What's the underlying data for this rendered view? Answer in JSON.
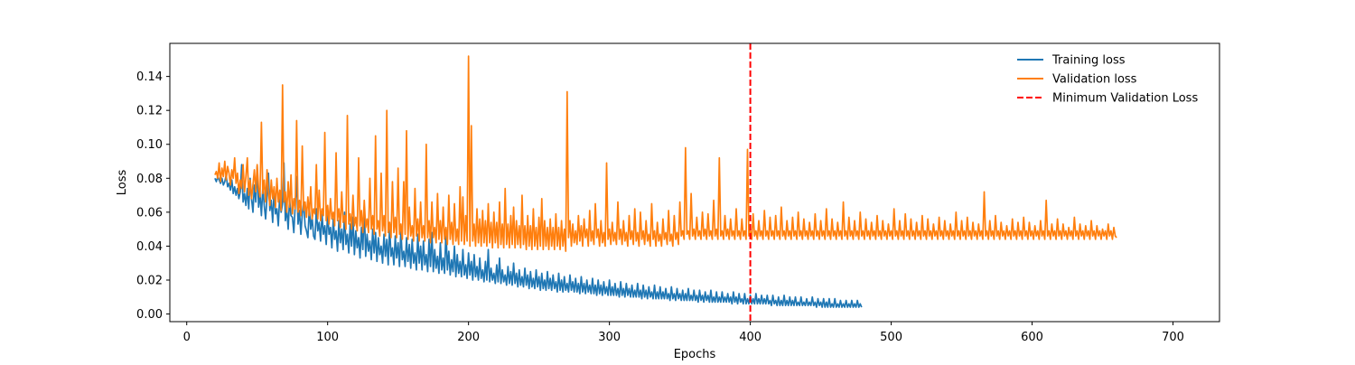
{
  "chart_data": {
    "type": "line",
    "title": "",
    "xlabel": "Epochs",
    "ylabel": "Loss",
    "xlim": [
      -12,
      733
    ],
    "ylim": [
      -0.0045,
      0.1595
    ],
    "xticks": [
      0,
      100,
      200,
      300,
      400,
      500,
      600,
      700
    ],
    "yticks": [
      0.0,
      0.02,
      0.04,
      0.06,
      0.08,
      0.1,
      0.12,
      0.14
    ],
    "ytick_labels": [
      "0.00",
      "0.02",
      "0.04",
      "0.06",
      "0.08",
      "0.10",
      "0.12",
      "0.14"
    ],
    "grid": false,
    "legend_position": "top-right",
    "series": [
      {
        "name": "Training loss",
        "color": "#1f77b4",
        "x_start": 20,
        "x_step": 1,
        "values": [
          0.08,
          0.078,
          0.081,
          0.079,
          0.077,
          0.08,
          0.076,
          0.078,
          0.082,
          0.075,
          0.077,
          0.073,
          0.079,
          0.071,
          0.075,
          0.07,
          0.074,
          0.068,
          0.072,
          0.088,
          0.066,
          0.071,
          0.064,
          0.074,
          0.062,
          0.08,
          0.068,
          0.06,
          0.076,
          0.066,
          0.087,
          0.063,
          0.071,
          0.058,
          0.075,
          0.064,
          0.056,
          0.069,
          0.083,
          0.061,
          0.067,
          0.054,
          0.073,
          0.059,
          0.062,
          0.052,
          0.07,
          0.06,
          0.065,
          0.089,
          0.055,
          0.062,
          0.05,
          0.068,
          0.058,
          0.057,
          0.048,
          0.064,
          0.081,
          0.053,
          0.061,
          0.047,
          0.059,
          0.066,
          0.052,
          0.049,
          0.045,
          0.063,
          0.05,
          0.057,
          0.046,
          0.044,
          0.062,
          0.049,
          0.054,
          0.043,
          0.059,
          0.047,
          0.052,
          0.041,
          0.06,
          0.047,
          0.051,
          0.039,
          0.056,
          0.044,
          0.049,
          0.037,
          0.055,
          0.042,
          0.05,
          0.038,
          0.06,
          0.041,
          0.047,
          0.036,
          0.053,
          0.04,
          0.057,
          0.035,
          0.049,
          0.039,
          0.045,
          0.033,
          0.051,
          0.038,
          0.063,
          0.034,
          0.047,
          0.037,
          0.043,
          0.032,
          0.05,
          0.036,
          0.048,
          0.031,
          0.045,
          0.035,
          0.04,
          0.03,
          0.047,
          0.034,
          0.044,
          0.029,
          0.052,
          0.034,
          0.039,
          0.029,
          0.046,
          0.033,
          0.042,
          0.028,
          0.05,
          0.032,
          0.037,
          0.028,
          0.045,
          0.031,
          0.041,
          0.027,
          0.044,
          0.03,
          0.036,
          0.026,
          0.047,
          0.03,
          0.04,
          0.026,
          0.043,
          0.029,
          0.035,
          0.025,
          0.044,
          0.028,
          0.048,
          0.025,
          0.038,
          0.027,
          0.034,
          0.024,
          0.042,
          0.026,
          0.033,
          0.024,
          0.05,
          0.026,
          0.037,
          0.023,
          0.032,
          0.025,
          0.04,
          0.022,
          0.035,
          0.024,
          0.031,
          0.022,
          0.038,
          0.023,
          0.029,
          0.021,
          0.036,
          0.023,
          0.031,
          0.02,
          0.035,
          0.022,
          0.028,
          0.02,
          0.033,
          0.021,
          0.026,
          0.019,
          0.031,
          0.02,
          0.038,
          0.019,
          0.027,
          0.02,
          0.024,
          0.018,
          0.029,
          0.019,
          0.033,
          0.018,
          0.026,
          0.019,
          0.023,
          0.017,
          0.028,
          0.018,
          0.025,
          0.017,
          0.03,
          0.018,
          0.024,
          0.016,
          0.026,
          0.017,
          0.022,
          0.016,
          0.027,
          0.017,
          0.023,
          0.015,
          0.025,
          0.016,
          0.021,
          0.015,
          0.026,
          0.016,
          0.022,
          0.014,
          0.024,
          0.015,
          0.02,
          0.014,
          0.025,
          0.015,
          0.021,
          0.014,
          0.023,
          0.015,
          0.019,
          0.013,
          0.024,
          0.014,
          0.02,
          0.013,
          0.022,
          0.014,
          0.018,
          0.013,
          0.023,
          0.014,
          0.019,
          0.013,
          0.021,
          0.013,
          0.018,
          0.012,
          0.022,
          0.013,
          0.018,
          0.012,
          0.02,
          0.013,
          0.017,
          0.012,
          0.021,
          0.012,
          0.017,
          0.011,
          0.02,
          0.012,
          0.017,
          0.011,
          0.019,
          0.012,
          0.016,
          0.011,
          0.02,
          0.011,
          0.016,
          0.011,
          0.018,
          0.011,
          0.015,
          0.01,
          0.019,
          0.011,
          0.015,
          0.01,
          0.018,
          0.011,
          0.015,
          0.01,
          0.017,
          0.01,
          0.014,
          0.01,
          0.018,
          0.01,
          0.014,
          0.009,
          0.017,
          0.01,
          0.014,
          0.009,
          0.016,
          0.01,
          0.013,
          0.009,
          0.017,
          0.009,
          0.013,
          0.009,
          0.016,
          0.009,
          0.013,
          0.009,
          0.015,
          0.009,
          0.012,
          0.008,
          0.016,
          0.009,
          0.012,
          0.008,
          0.015,
          0.009,
          0.012,
          0.008,
          0.014,
          0.008,
          0.012,
          0.008,
          0.015,
          0.008,
          0.011,
          0.008,
          0.014,
          0.008,
          0.011,
          0.007,
          0.014,
          0.008,
          0.011,
          0.007,
          0.013,
          0.008,
          0.011,
          0.007,
          0.014,
          0.007,
          0.01,
          0.007,
          0.013,
          0.007,
          0.01,
          0.007,
          0.013,
          0.007,
          0.01,
          0.007,
          0.012,
          0.007,
          0.01,
          0.006,
          0.013,
          0.007,
          0.01,
          0.006,
          0.012,
          0.007,
          0.009,
          0.006,
          0.012,
          0.006,
          0.009,
          0.006,
          0.011,
          0.006,
          0.009,
          0.006,
          0.012,
          0.006,
          0.009,
          0.006,
          0.011,
          0.006,
          0.009,
          0.006,
          0.011,
          0.006,
          0.008,
          0.005,
          0.011,
          0.006,
          0.008,
          0.005,
          0.01,
          0.005,
          0.008,
          0.005,
          0.011,
          0.005,
          0.008,
          0.005,
          0.01,
          0.005,
          0.008,
          0.005,
          0.01,
          0.005,
          0.007,
          0.005,
          0.01,
          0.005,
          0.007,
          0.005,
          0.009,
          0.005,
          0.007,
          0.005,
          0.01,
          0.005,
          0.007,
          0.004,
          0.009,
          0.005,
          0.007,
          0.004,
          0.009,
          0.004,
          0.007,
          0.004,
          0.009,
          0.004,
          0.006,
          0.004,
          0.009,
          0.004,
          0.006,
          0.004,
          0.008,
          0.004,
          0.006,
          0.004,
          0.008,
          0.004,
          0.006,
          0.004,
          0.008,
          0.004,
          0.006,
          0.004,
          0.008,
          0.004,
          0.006,
          0.004
        ]
      },
      {
        "name": "Validation loss",
        "color": "#ff7f0e",
        "x_start": 20,
        "x_step": 1,
        "values": [
          0.082,
          0.084,
          0.08,
          0.089,
          0.078,
          0.086,
          0.081,
          0.09,
          0.079,
          0.087,
          0.083,
          0.076,
          0.085,
          0.08,
          0.092,
          0.077,
          0.083,
          0.071,
          0.079,
          0.074,
          0.088,
          0.072,
          0.081,
          0.092,
          0.07,
          0.079,
          0.068,
          0.076,
          0.085,
          0.072,
          0.088,
          0.074,
          0.069,
          0.113,
          0.071,
          0.079,
          0.066,
          0.085,
          0.072,
          0.064,
          0.079,
          0.068,
          0.075,
          0.063,
          0.08,
          0.066,
          0.073,
          0.061,
          0.135,
          0.066,
          0.072,
          0.06,
          0.078,
          0.063,
          0.082,
          0.059,
          0.068,
          0.062,
          0.114,
          0.06,
          0.067,
          0.058,
          0.099,
          0.061,
          0.066,
          0.057,
          0.069,
          0.058,
          0.075,
          0.056,
          0.062,
          0.059,
          0.088,
          0.056,
          0.073,
          0.055,
          0.062,
          0.058,
          0.107,
          0.055,
          0.064,
          0.053,
          0.068,
          0.056,
          0.06,
          0.052,
          0.095,
          0.055,
          0.062,
          0.051,
          0.072,
          0.054,
          0.058,
          0.05,
          0.117,
          0.053,
          0.059,
          0.05,
          0.07,
          0.052,
          0.057,
          0.049,
          0.092,
          0.052,
          0.061,
          0.048,
          0.067,
          0.051,
          0.056,
          0.048,
          0.08,
          0.05,
          0.058,
          0.047,
          0.105,
          0.05,
          0.055,
          0.046,
          0.083,
          0.049,
          0.058,
          0.046,
          0.12,
          0.048,
          0.054,
          0.045,
          0.078,
          0.048,
          0.057,
          0.045,
          0.086,
          0.047,
          0.053,
          0.044,
          0.078,
          0.047,
          0.108,
          0.044,
          0.063,
          0.046,
          0.052,
          0.043,
          0.074,
          0.046,
          0.056,
          0.043,
          0.066,
          0.045,
          0.052,
          0.043,
          0.1,
          0.045,
          0.055,
          0.042,
          0.066,
          0.045,
          0.051,
          0.042,
          0.071,
          0.044,
          0.055,
          0.042,
          0.063,
          0.044,
          0.051,
          0.041,
          0.07,
          0.044,
          0.054,
          0.041,
          0.065,
          0.043,
          0.05,
          0.041,
          0.075,
          0.043,
          0.069,
          0.041,
          0.058,
          0.043,
          0.152,
          0.04,
          0.111,
          0.043,
          0.053,
          0.04,
          0.062,
          0.042,
          0.056,
          0.04,
          0.061,
          0.042,
          0.055,
          0.04,
          0.065,
          0.042,
          0.054,
          0.039,
          0.06,
          0.042,
          0.054,
          0.039,
          0.066,
          0.041,
          0.053,
          0.039,
          0.074,
          0.041,
          0.053,
          0.039,
          0.058,
          0.041,
          0.063,
          0.039,
          0.055,
          0.041,
          0.052,
          0.039,
          0.07,
          0.041,
          0.052,
          0.038,
          0.058,
          0.04,
          0.052,
          0.038,
          0.062,
          0.04,
          0.051,
          0.038,
          0.057,
          0.04,
          0.068,
          0.038,
          0.055,
          0.04,
          0.051,
          0.038,
          0.056,
          0.04,
          0.051,
          0.038,
          0.059,
          0.04,
          0.051,
          0.038,
          0.055,
          0.04,
          0.05,
          0.037,
          0.131,
          0.045,
          0.055,
          0.04,
          0.053,
          0.042,
          0.049,
          0.041,
          0.058,
          0.043,
          0.052,
          0.04,
          0.056,
          0.045,
          0.05,
          0.04,
          0.061,
          0.043,
          0.049,
          0.041,
          0.065,
          0.045,
          0.05,
          0.04,
          0.055,
          0.042,
          0.048,
          0.04,
          0.089,
          0.044,
          0.05,
          0.041,
          0.054,
          0.043,
          0.048,
          0.041,
          0.066,
          0.044,
          0.05,
          0.041,
          0.055,
          0.043,
          0.048,
          0.04,
          0.058,
          0.044,
          0.049,
          0.041,
          0.062,
          0.043,
          0.048,
          0.04,
          0.06,
          0.044,
          0.049,
          0.041,
          0.055,
          0.043,
          0.047,
          0.04,
          0.065,
          0.044,
          0.049,
          0.04,
          0.054,
          0.043,
          0.047,
          0.04,
          0.056,
          0.044,
          0.048,
          0.041,
          0.061,
          0.043,
          0.047,
          0.04,
          0.058,
          0.044,
          0.048,
          0.041,
          0.066,
          0.046,
          0.049,
          0.044,
          0.098,
          0.047,
          0.049,
          0.044,
          0.071,
          0.046,
          0.05,
          0.044,
          0.057,
          0.046,
          0.049,
          0.044,
          0.06,
          0.046,
          0.05,
          0.044,
          0.059,
          0.046,
          0.049,
          0.044,
          0.067,
          0.046,
          0.05,
          0.044,
          0.092,
          0.046,
          0.049,
          0.044,
          0.058,
          0.046,
          0.05,
          0.044,
          0.056,
          0.046,
          0.049,
          0.044,
          0.062,
          0.046,
          0.049,
          0.044,
          0.056,
          0.046,
          0.049,
          0.044,
          0.097,
          0.046,
          0.049,
          0.044,
          0.059,
          0.046,
          0.049,
          0.044,
          0.055,
          0.046,
          0.049,
          0.044,
          0.061,
          0.046,
          0.049,
          0.044,
          0.057,
          0.046,
          0.049,
          0.044,
          0.058,
          0.046,
          0.049,
          0.044,
          0.063,
          0.046,
          0.049,
          0.044,
          0.055,
          0.046,
          0.049,
          0.044,
          0.057,
          0.046,
          0.049,
          0.044,
          0.06,
          0.046,
          0.049,
          0.044,
          0.056,
          0.046,
          0.049,
          0.044,
          0.054,
          0.046,
          0.049,
          0.044,
          0.059,
          0.046,
          0.049,
          0.044,
          0.055,
          0.046,
          0.049,
          0.044,
          0.062,
          0.046,
          0.049,
          0.044,
          0.056,
          0.046,
          0.049,
          0.044,
          0.054,
          0.046,
          0.049,
          0.044,
          0.066,
          0.046,
          0.049,
          0.044,
          0.057,
          0.046,
          0.049,
          0.044,
          0.055,
          0.046,
          0.049,
          0.044,
          0.06,
          0.046,
          0.049,
          0.044,
          0.056,
          0.046,
          0.049,
          0.044,
          0.054,
          0.046,
          0.049,
          0.044,
          0.058,
          0.046,
          0.049,
          0.044,
          0.055,
          0.046,
          0.049,
          0.044,
          0.053,
          0.046,
          0.049,
          0.044,
          0.062,
          0.046,
          0.049,
          0.044,
          0.055,
          0.046,
          0.049,
          0.044,
          0.059,
          0.046,
          0.049,
          0.044,
          0.056,
          0.046,
          0.049,
          0.044,
          0.054,
          0.046,
          0.049,
          0.044,
          0.058,
          0.046,
          0.049,
          0.044,
          0.056,
          0.046,
          0.049,
          0.044,
          0.053,
          0.046,
          0.049,
          0.044,
          0.057,
          0.046,
          0.049,
          0.044,
          0.055,
          0.046,
          0.049,
          0.044,
          0.053,
          0.046,
          0.049,
          0.044,
          0.06,
          0.046,
          0.049,
          0.044,
          0.055,
          0.046,
          0.049,
          0.044,
          0.057,
          0.046,
          0.049,
          0.044,
          0.054,
          0.046,
          0.049,
          0.044,
          0.053,
          0.046,
          0.049,
          0.044,
          0.072,
          0.046,
          0.049,
          0.044,
          0.055,
          0.046,
          0.049,
          0.044,
          0.058,
          0.046,
          0.049,
          0.044,
          0.054,
          0.046,
          0.049,
          0.044,
          0.052,
          0.046,
          0.049,
          0.044,
          0.056,
          0.046,
          0.049,
          0.044,
          0.054,
          0.046,
          0.049,
          0.044,
          0.057,
          0.046,
          0.049,
          0.044,
          0.054,
          0.046,
          0.049,
          0.044,
          0.052,
          0.046,
          0.049,
          0.044,
          0.055,
          0.046,
          0.049,
          0.044,
          0.067,
          0.046,
          0.049,
          0.044,
          0.053,
          0.046,
          0.049,
          0.044,
          0.056,
          0.046,
          0.049,
          0.044,
          0.053,
          0.046,
          0.049,
          0.044,
          0.051,
          0.046,
          0.049,
          0.044,
          0.057,
          0.046,
          0.049,
          0.044,
          0.053,
          0.046,
          0.049,
          0.044,
          0.052,
          0.046,
          0.049,
          0.044,
          0.055,
          0.046,
          0.049,
          0.044,
          0.052,
          0.046,
          0.049,
          0.044,
          0.05,
          0.046,
          0.049,
          0.044,
          0.053,
          0.046,
          0.049,
          0.044,
          0.051,
          0.046,
          0.045
        ]
      },
      {
        "name": "Minimum Validation Loss",
        "color": "#ff0000",
        "type": "vline",
        "x": 400,
        "style": "dashed"
      }
    ]
  }
}
